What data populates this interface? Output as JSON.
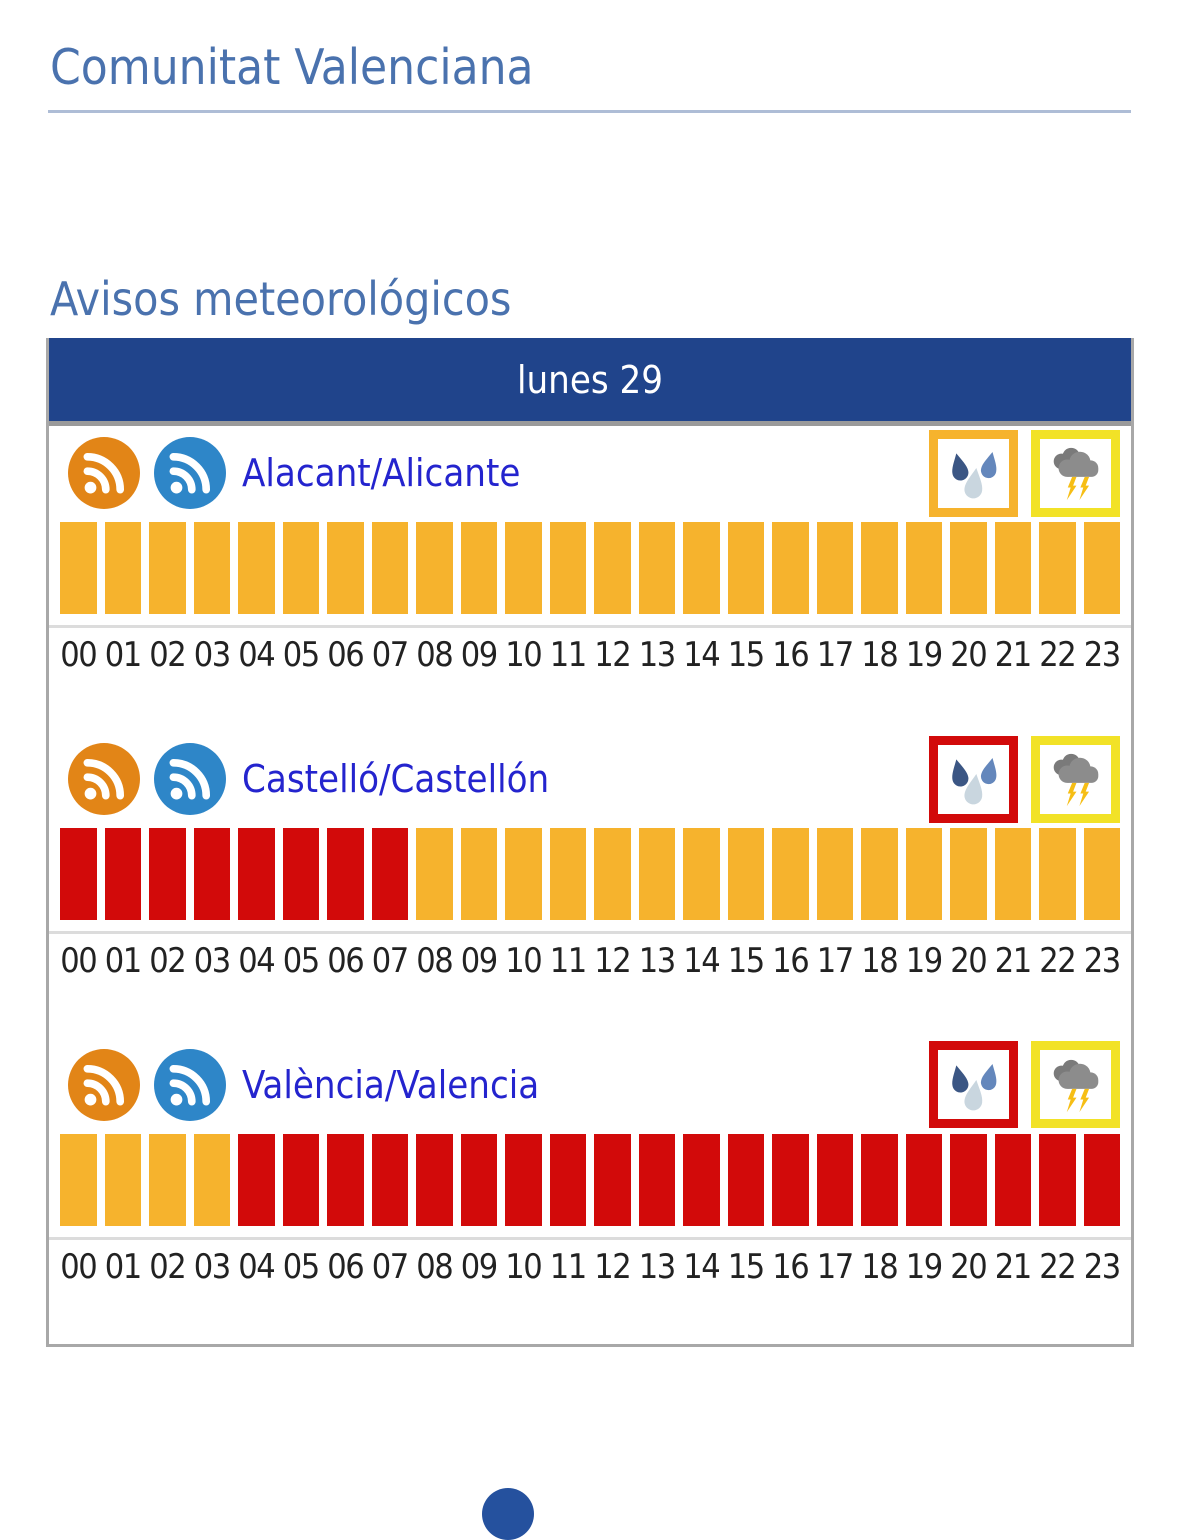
{
  "page": {
    "region_title": "Comunitat Valenciana",
    "section_title": "Avisos meteorológicos"
  },
  "warnings_table": {
    "day_header": "lunes 29",
    "hours": [
      "00",
      "01",
      "02",
      "03",
      "04",
      "05",
      "06",
      "07",
      "08",
      "09",
      "10",
      "11",
      "12",
      "13",
      "14",
      "15",
      "16",
      "17",
      "18",
      "19",
      "20",
      "21",
      "22",
      "23"
    ],
    "provinces": [
      {
        "name": "Alacant/Alicante",
        "rss_feeds": [
          "rss-orange",
          "rss-blue"
        ],
        "warnings": [
          {
            "icon": "rain-drops-icon",
            "level": "orange"
          },
          {
            "icon": "storm-lightning-icon",
            "level": "yellow"
          }
        ],
        "hourly_levels": [
          "orange",
          "orange",
          "orange",
          "orange",
          "orange",
          "orange",
          "orange",
          "orange",
          "orange",
          "orange",
          "orange",
          "orange",
          "orange",
          "orange",
          "orange",
          "orange",
          "orange",
          "orange",
          "orange",
          "orange",
          "orange",
          "orange",
          "orange",
          "orange"
        ]
      },
      {
        "name": "Castelló/Castellón",
        "rss_feeds": [
          "rss-orange",
          "rss-blue"
        ],
        "warnings": [
          {
            "icon": "rain-drops-icon",
            "level": "red"
          },
          {
            "icon": "storm-lightning-icon",
            "level": "yellow"
          }
        ],
        "hourly_levels": [
          "red",
          "red",
          "red",
          "red",
          "red",
          "red",
          "red",
          "red",
          "orange",
          "orange",
          "orange",
          "orange",
          "orange",
          "orange",
          "orange",
          "orange",
          "orange",
          "orange",
          "orange",
          "orange",
          "orange",
          "orange",
          "orange",
          "orange"
        ]
      },
      {
        "name": "València/Valencia",
        "rss_feeds": [
          "rss-orange",
          "rss-blue"
        ],
        "warnings": [
          {
            "icon": "rain-drops-icon",
            "level": "red"
          },
          {
            "icon": "storm-lightning-icon",
            "level": "yellow"
          }
        ],
        "hourly_levels": [
          "orange",
          "orange",
          "orange",
          "orange",
          "red",
          "red",
          "red",
          "red",
          "red",
          "red",
          "red",
          "red",
          "red",
          "red",
          "red",
          "red",
          "red",
          "red",
          "red",
          "red",
          "red",
          "red",
          "red",
          "red"
        ]
      }
    ]
  },
  "colors": {
    "levels": {
      "orange": "#F6B32D",
      "red": "#D20A0A",
      "yellow": "#F2E227"
    },
    "heading_blue": "#4A72AE",
    "link_blue": "#2424CE",
    "day_header_bg": "#20448B",
    "rss_orange": "#E28517",
    "rss_blue": "#2E86C8",
    "storm_cloud_gray": "#8C8C8C",
    "lightning_yellow": "#F6BE15",
    "footer_circle_blue": "#25519E"
  },
  "icons": {
    "rss": "rss-icon",
    "rain": "rain-drops-icon",
    "storm": "storm-lightning-icon"
  }
}
